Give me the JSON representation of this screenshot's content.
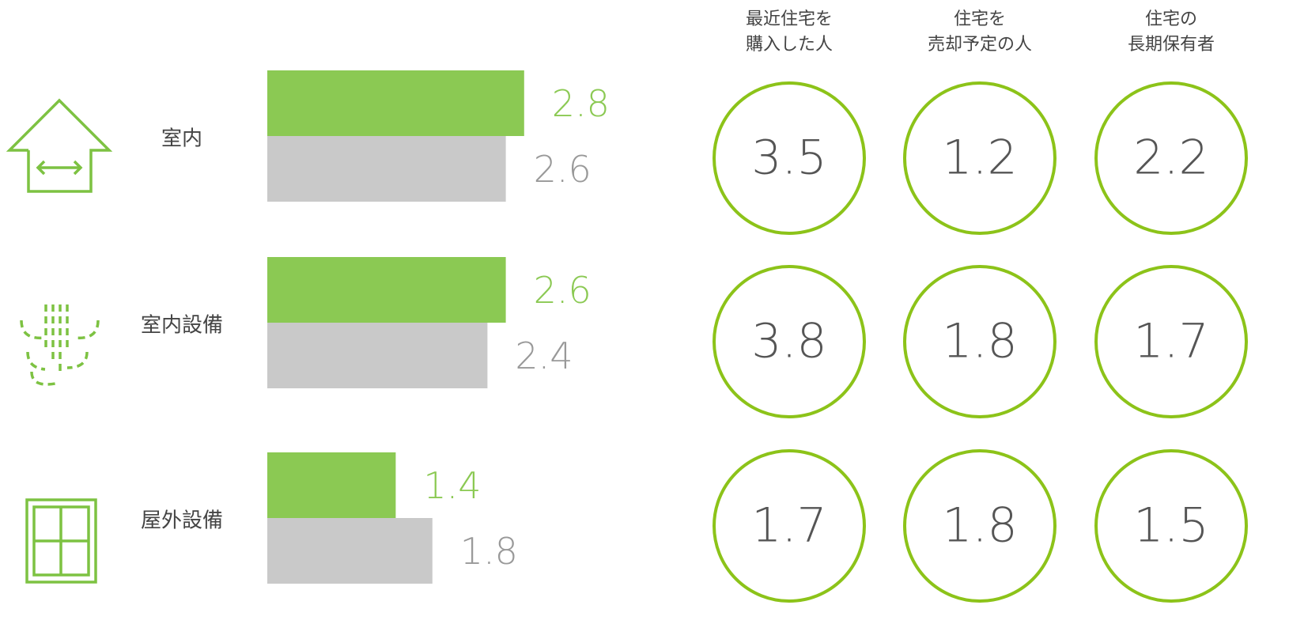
{
  "chart_data": [
    {
      "type": "bar",
      "categories": [
        "室内",
        "室内設備",
        "屋外設備"
      ],
      "series": [
        {
          "color": "#8bc953",
          "values": [
            2.8,
            2.6,
            1.4
          ]
        },
        {
          "color": "#c9c9c9",
          "values": [
            2.6,
            2.4,
            1.8
          ]
        }
      ]
    },
    {
      "type": "table",
      "columns": [
        [
          "最近住宅を",
          "購入した人"
        ],
        [
          "住宅を",
          "売却予定の人"
        ],
        [
          "住宅の",
          "長期保有者"
        ]
      ],
      "rows": [
        [
          3.5,
          1.2,
          2.2
        ],
        [
          3.8,
          1.8,
          1.7
        ],
        [
          1.7,
          1.8,
          1.5
        ]
      ],
      "color": "#8cc319"
    }
  ]
}
